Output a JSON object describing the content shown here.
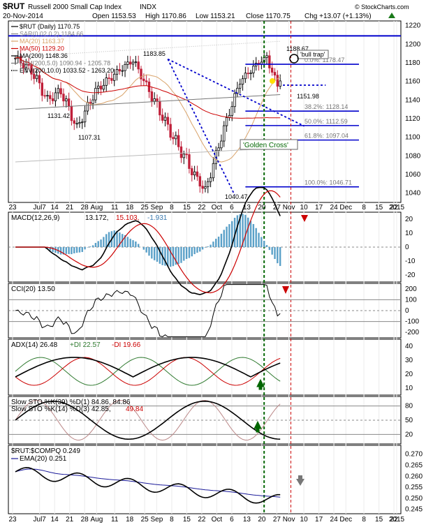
{
  "header": {
    "symbol": "$RUT",
    "name": "Russell 2000 Small Cap Index",
    "exchange": "INDX",
    "brand": "© StockCharts.com",
    "date": "20-Nov-2014",
    "open": "Open 1153.53",
    "high": "High 1170.86",
    "low": "Low 1153.21",
    "close": "Close 1170.75",
    "chg": "Chg +13.07 (+1.13%)",
    "chg_icon": "up-triangle-icon"
  },
  "price_panel": {
    "legend": [
      {
        "text": "$RUT (Daily) 1170.75",
        "color": "#000000",
        "icon": "candle-icon"
      },
      {
        "text": "SAR(0.02,0.2) 1184.66",
        "color": "#888888",
        "icon": "dot-icon"
      },
      {
        "text": "MA(20) 1163.37",
        "color": "#d9a36a",
        "icon": "line-icon"
      },
      {
        "text": "MA(50) 1129.20",
        "color": "#cc0000",
        "icon": "line-icon"
      },
      {
        "text": "MA(200) 1148.36",
        "color": "#000000",
        "icon": "line-icon"
      },
      {
        "text": "ENV(200,5.0) 1090.94 - 1205.78",
        "color": "#777777",
        "icon": "line-icon"
      },
      {
        "text": "ENV(200,10.0) 1033.52 - 1263.20",
        "color": "#000000",
        "icon": "dotted-line-icon"
      }
    ],
    "annotations": {
      "high_sep": "1183.85",
      "low_jul": "1131.42",
      "low_aug": "1107.31",
      "low_oct": "1040.47",
      "high_nov": "1188.67",
      "pullback": "1151.98",
      "bull_trap": "'bull trap'",
      "golden_cross": "'Golden Cross'"
    },
    "fib": [
      {
        "label": "0.0%: 1178.47",
        "value": 1178.47
      },
      {
        "label": "38.2%: 1128.14",
        "value": 1128.14
      },
      {
        "label": "50.0%: 1112.59",
        "value": 1112.59
      },
      {
        "label": "61.8%: 1097.04",
        "value": 1097.04
      },
      {
        "label": "100.0%: 1046.71",
        "value": 1046.71
      }
    ],
    "yticks": [
      "1220",
      "1200",
      "1180",
      "1160",
      "1140",
      "1120",
      "1100",
      "1080",
      "1060",
      "1040"
    ]
  },
  "x_axis": {
    "labels": [
      "23",
      "Jul7",
      "14",
      "21",
      "28",
      "Aug",
      "11",
      "18",
      "25",
      "Sep",
      "8",
      "15",
      "22",
      "Oct",
      "6",
      "13",
      "20",
      "27",
      "Nov",
      "10",
      "17",
      "24",
      "Dec",
      "8",
      "15",
      "22",
      "2015"
    ]
  },
  "macd_panel": {
    "title": "MACD(12,26,9)",
    "v1": "13.172,",
    "v2": "15.103,",
    "v3": "-1.931",
    "yticks": [
      "20",
      "10",
      "0",
      "-10",
      "-20"
    ]
  },
  "cci_panel": {
    "title": "CCI(20) 13.50",
    "yticks": [
      "200",
      "100",
      "0",
      "-100",
      "-200"
    ]
  },
  "adx_panel": {
    "t1": "ADX(14) 26.48",
    "t2": "+DI 22.57",
    "t3": "-DI 19.66",
    "yticks": [
      "40",
      "30",
      "20",
      "10"
    ]
  },
  "sto_panel": {
    "l1": "Slow STO %K(39) %D(1) 84.86, 84.86",
    "l2a": "Slow STO %K(14) %D(3) 42.85,",
    "l2b": "49.84",
    "yticks": [
      "80",
      "50",
      "20"
    ]
  },
  "ratio_panel": {
    "title": "$RUT:$COMPQ 0.249",
    "ema": "EMA(20) 0.251",
    "yticks": [
      "0.270",
      "0.265",
      "0.260",
      "0.255",
      "0.250",
      "0.245"
    ]
  },
  "colors": {
    "up": "#000000",
    "down": "#c0203a",
    "ma20": "#d9a36a",
    "ma50": "#cc0000",
    "fib": "#0000cc",
    "trend": "#0000cc",
    "green_vline": "#006600",
    "red_vline": "#cc0000",
    "hist": "#5aa0c8"
  }
}
